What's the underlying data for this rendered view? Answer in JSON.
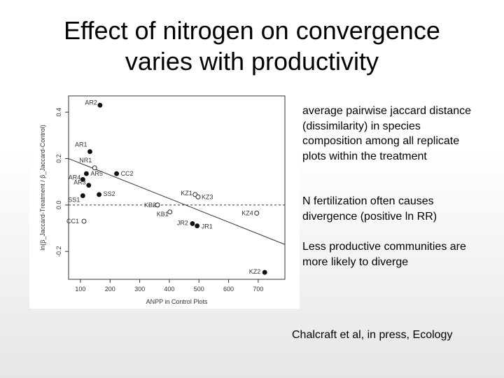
{
  "slide": {
    "title_line1": "Effect of nitrogen on convergence",
    "title_line2": "varies with productivity",
    "bullets": [
      "average pairwise jaccard distance (dissimilarity) in species composition among all replicate plots within the treatment",
      "N fertilization often causes divergence (positive ln RR)",
      "Less productive communities are more likely to diverge"
    ],
    "citation": "Chalcraft et al, in press, Ecology"
  },
  "chart_data": {
    "type": "scatter",
    "xlabel": "ANPP in Control Plots",
    "ylabel": "ln(β_Jaccard-Treatment / β_Jaccard-Control)",
    "x_ticks": [
      "100",
      "200",
      "300",
      "400",
      "500",
      "600",
      "700"
    ],
    "y_ticks": [
      "-0.2",
      "0.0",
      "0.2",
      "0.4"
    ],
    "xlim": [
      60,
      790
    ],
    "ylim": [
      -0.32,
      0.47
    ],
    "reference_line_y": 0.0,
    "regression_line": {
      "x1": 60,
      "y1": 0.2,
      "x2": 790,
      "y2": -0.17
    },
    "points": [
      {
        "label": "AR2",
        "x": 166,
        "y": 0.43,
        "filled": true
      },
      {
        "label": "AR1",
        "x": 132,
        "y": 0.23,
        "filled": true
      },
      {
        "label": "NR1",
        "x": 148,
        "y": 0.16,
        "filled": false
      },
      {
        "label": "AR5",
        "x": 120,
        "y": 0.135,
        "filled": true
      },
      {
        "label": "CC2",
        "x": 222,
        "y": 0.135,
        "filled": true
      },
      {
        "label": "AR4",
        "x": 108,
        "y": 0.11,
        "filled": true
      },
      {
        "label": "AR3",
        "x": 128,
        "y": 0.085,
        "filled": true
      },
      {
        "label": "SS2",
        "x": 163,
        "y": 0.045,
        "filled": true
      },
      {
        "label": "SS1",
        "x": 108,
        "y": 0.04,
        "filled": true
      },
      {
        "label": "CC1",
        "x": 112,
        "y": -0.07,
        "filled": false
      },
      {
        "label": "KZ1",
        "x": 487,
        "y": 0.045,
        "filled": false
      },
      {
        "label": "KZ3",
        "x": 497,
        "y": 0.035,
        "filled": false
      },
      {
        "label": "KB2",
        "x": 360,
        "y": 0.0,
        "filled": false
      },
      {
        "label": "KB1",
        "x": 402,
        "y": -0.03,
        "filled": false
      },
      {
        "label": "KZ4",
        "x": 695,
        "y": -0.035,
        "filled": false
      },
      {
        "label": "JR2",
        "x": 478,
        "y": -0.08,
        "filled": true
      },
      {
        "label": "JR1",
        "x": 494,
        "y": -0.09,
        "filled": true
      },
      {
        "label": "KZ2",
        "x": 722,
        "y": -0.29,
        "filled": true
      }
    ]
  }
}
